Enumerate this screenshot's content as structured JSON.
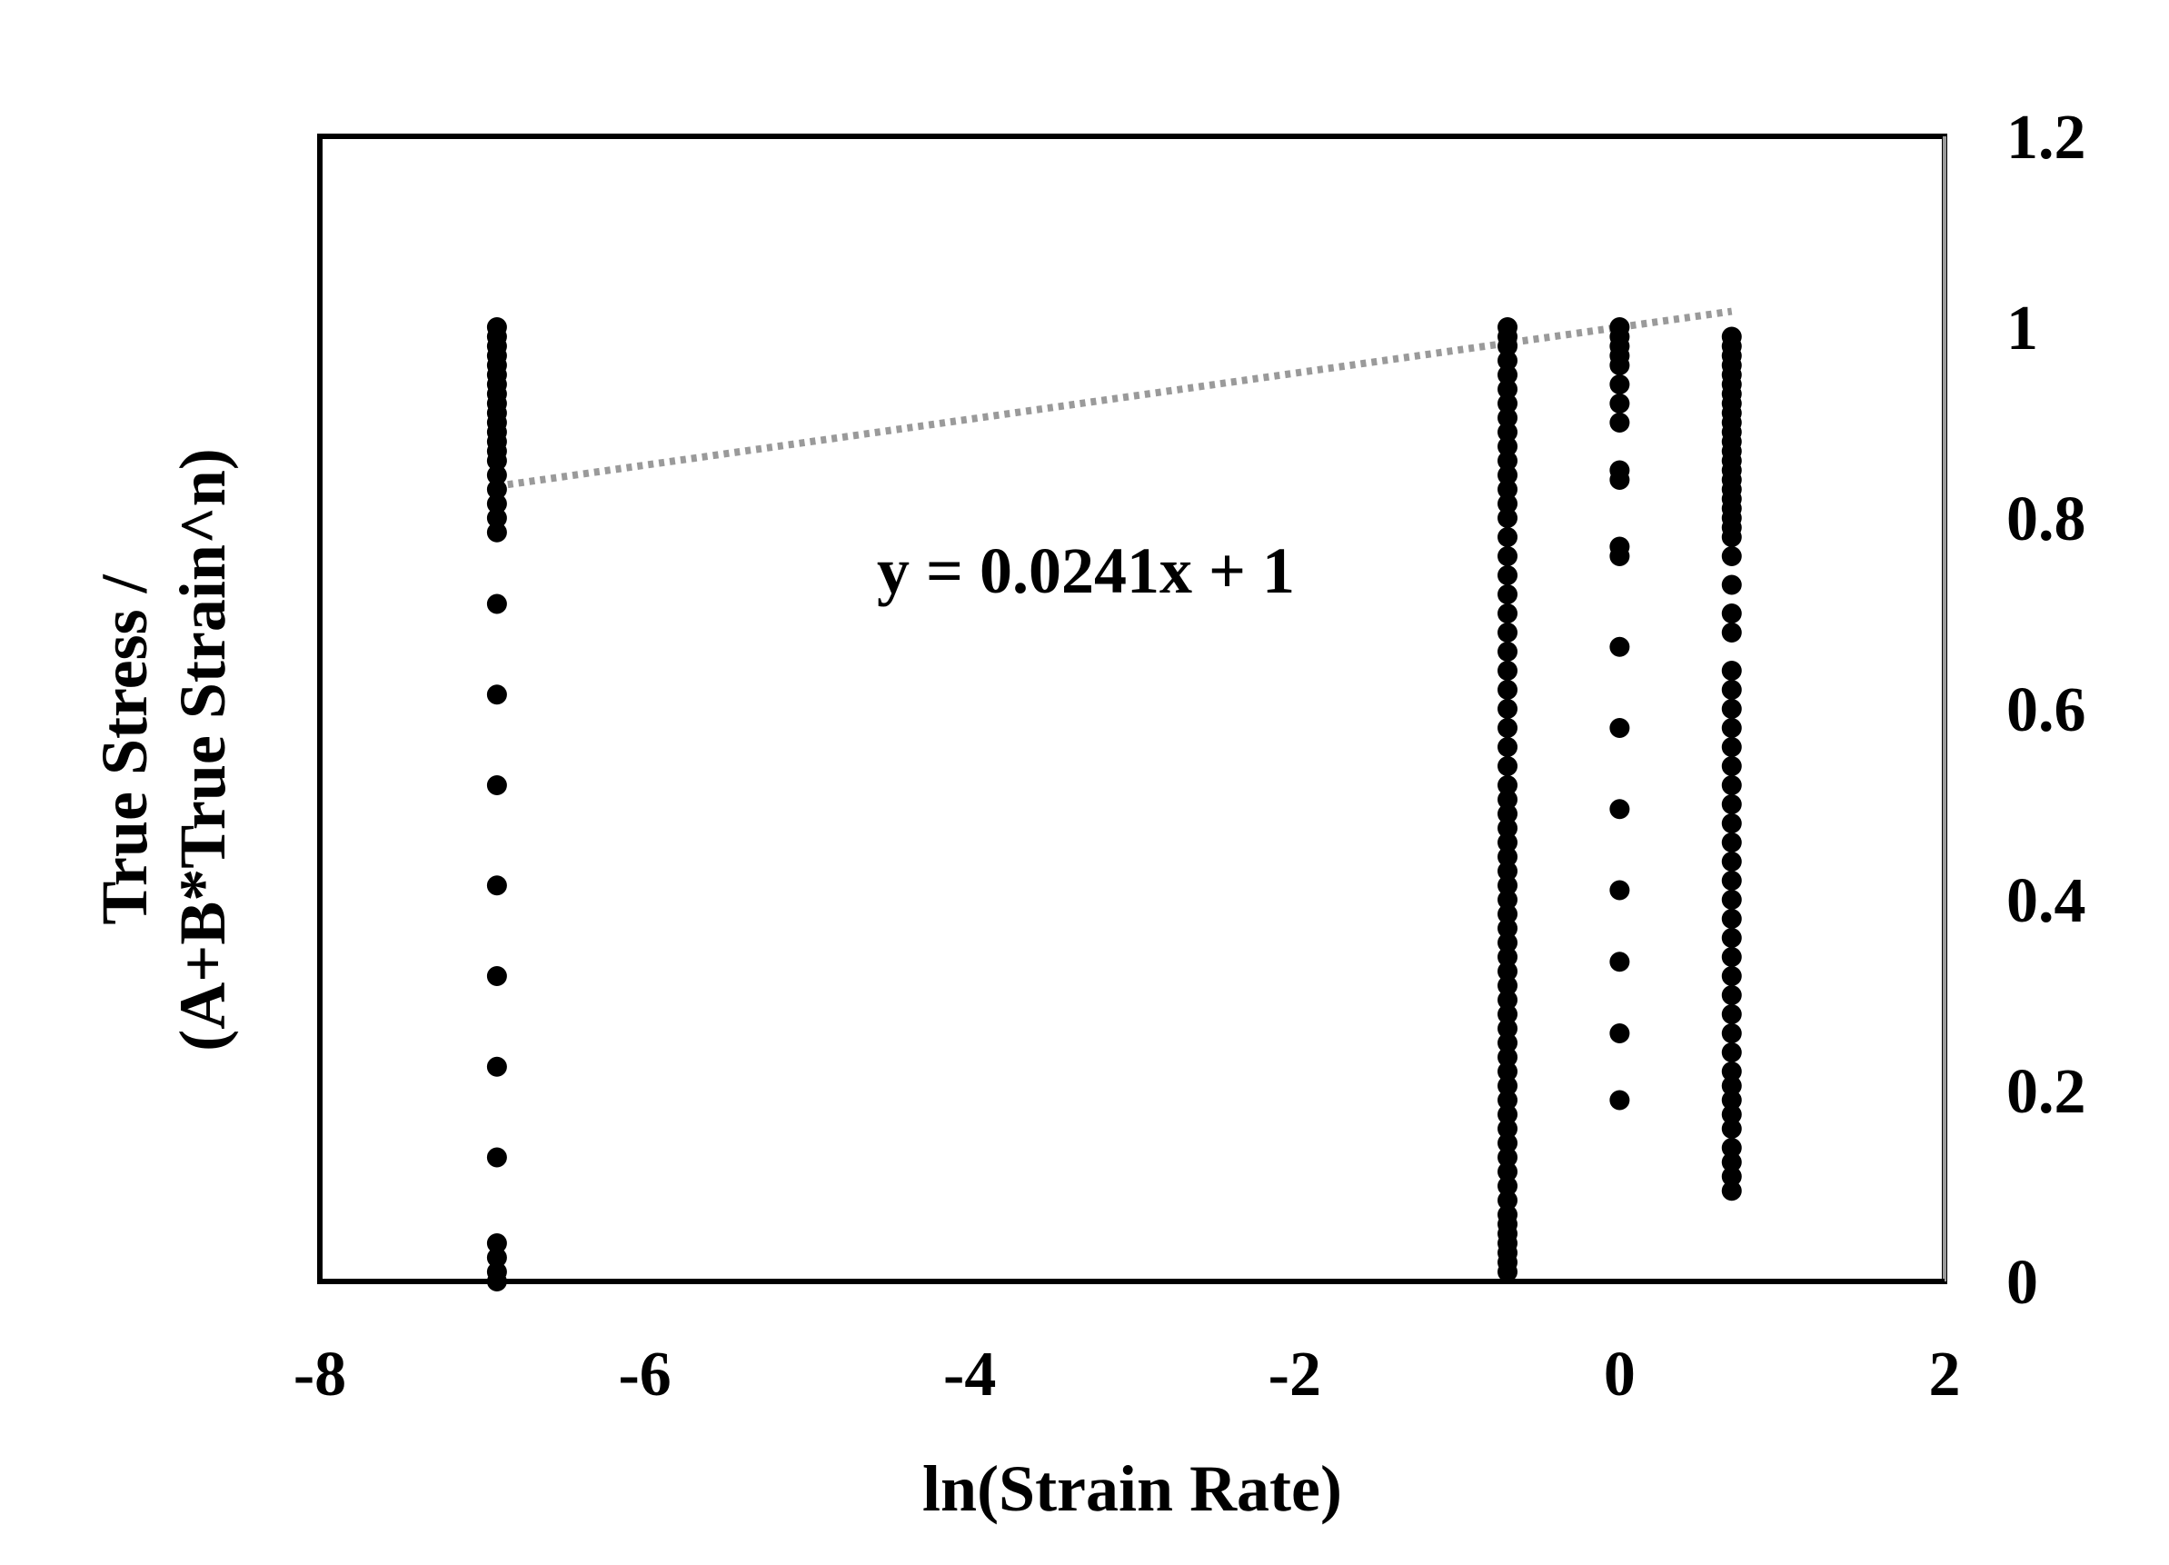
{
  "chart_data": {
    "type": "scatter",
    "xlabel": "ln(Strain Rate)",
    "ylabel_lines": [
      "True Stress /",
      "(A+B*True Strain^n)"
    ],
    "xlim": [
      -8,
      2
    ],
    "ylim": [
      0,
      1.2
    ],
    "x_ticks": [
      "-8",
      "-6",
      "-4",
      "-2",
      "0",
      "2"
    ],
    "y_ticks": [
      "0",
      "0.2",
      "0.4",
      "0.6",
      "0.8",
      "1",
      "1.2"
    ],
    "x_tick_values": [
      -8,
      -6,
      -4,
      -2,
      0,
      2
    ],
    "y_tick_values": [
      0,
      0.2,
      0.4,
      0.6,
      0.8,
      1,
      1.2
    ],
    "y_axis_position": "right",
    "grid": false,
    "trendline": {
      "equation": "y = 0.0241x + 1",
      "slope": 0.0241,
      "intercept": 1,
      "x_range": [
        -6.91,
        0.69
      ],
      "style": "dotted",
      "color": "#9a9a9a"
    },
    "point_color": "#000000",
    "series": [
      {
        "x": -6.91,
        "y": [
          0.0,
          0.01,
          0.025,
          0.04,
          0.13,
          0.225,
          0.32,
          0.415,
          0.52,
          0.615,
          0.71,
          0.785,
          0.8,
          0.815,
          0.83,
          0.845,
          0.86,
          0.87,
          0.88,
          0.89,
          0.9,
          0.91,
          0.92,
          0.93,
          0.94,
          0.95,
          0.96,
          0.97,
          0.98,
          0.99,
          1.0
        ]
      },
      {
        "x": -0.69,
        "y": [
          0.01,
          0.02,
          0.03,
          0.04,
          0.05,
          0.06,
          0.07,
          0.085,
          0.1,
          0.115,
          0.13,
          0.145,
          0.16,
          0.175,
          0.19,
          0.205,
          0.22,
          0.235,
          0.25,
          0.265,
          0.28,
          0.295,
          0.31,
          0.325,
          0.34,
          0.355,
          0.37,
          0.385,
          0.4,
          0.415,
          0.43,
          0.445,
          0.46,
          0.475,
          0.49,
          0.505,
          0.52,
          0.54,
          0.56,
          0.58,
          0.6,
          0.62,
          0.64,
          0.66,
          0.68,
          0.7,
          0.72,
          0.74,
          0.76,
          0.78,
          0.8,
          0.815,
          0.83,
          0.845,
          0.86,
          0.875,
          0.89,
          0.905,
          0.92,
          0.935,
          0.95,
          0.965,
          0.98,
          0.99,
          1.0
        ]
      },
      {
        "x": 0.0,
        "y": [
          0.19,
          0.26,
          0.335,
          0.41,
          0.495,
          0.58,
          0.665,
          0.76,
          0.77,
          0.84,
          0.85,
          0.9,
          0.92,
          0.94,
          0.96,
          0.97,
          0.98,
          0.99,
          1.0
        ]
      },
      {
        "x": 0.69,
        "y": [
          0.095,
          0.11,
          0.125,
          0.14,
          0.16,
          0.175,
          0.19,
          0.205,
          0.22,
          0.24,
          0.26,
          0.28,
          0.3,
          0.32,
          0.34,
          0.36,
          0.38,
          0.4,
          0.42,
          0.44,
          0.46,
          0.48,
          0.5,
          0.52,
          0.54,
          0.56,
          0.58,
          0.6,
          0.62,
          0.64,
          0.68,
          0.7,
          0.73,
          0.76,
          0.78,
          0.79,
          0.8,
          0.81,
          0.82,
          0.83,
          0.84,
          0.85,
          0.86,
          0.87,
          0.88,
          0.89,
          0.9,
          0.91,
          0.92,
          0.93,
          0.94,
          0.95,
          0.96,
          0.97,
          0.98,
          0.99
        ]
      }
    ]
  }
}
